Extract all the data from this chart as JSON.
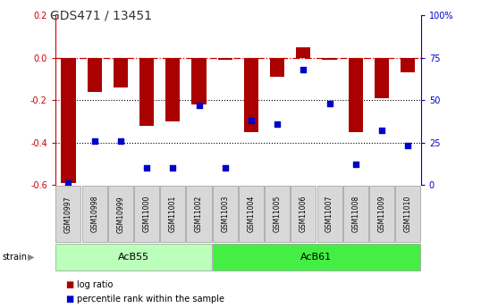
{
  "title": "GDS471 / 13451",
  "samples": [
    "GSM10997",
    "GSM10998",
    "GSM10999",
    "GSM11000",
    "GSM11001",
    "GSM11002",
    "GSM11003",
    "GSM11004",
    "GSM11005",
    "GSM11006",
    "GSM11007",
    "GSM11008",
    "GSM11009",
    "GSM11010"
  ],
  "log_ratio": [
    -0.59,
    -0.16,
    -0.14,
    -0.32,
    -0.3,
    -0.22,
    -0.01,
    -0.35,
    -0.09,
    0.05,
    -0.01,
    -0.35,
    -0.19,
    -0.07
  ],
  "percentile_rank": [
    1,
    26,
    26,
    10,
    10,
    47,
    10,
    38,
    36,
    68,
    48,
    12,
    32,
    23
  ],
  "strain_groups": [
    {
      "label": "AcB55",
      "start": 0,
      "end": 5
    },
    {
      "label": "AcB61",
      "start": 6,
      "end": 13
    }
  ],
  "ylim": [
    -0.6,
    0.2
  ],
  "yticks_left": [
    -0.6,
    -0.4,
    -0.2,
    0.0,
    0.2
  ],
  "yticks_right": [
    0,
    25,
    50,
    75,
    100
  ],
  "bar_color": "#aa0000",
  "dot_color": "#0000cc",
  "hline_color": "#cc0000",
  "grid_color": "#000000",
  "bg_color": "#ffffff",
  "strain_bg1": "#bbffbb",
  "strain_bg2": "#44ee44",
  "legend_items": [
    "log ratio",
    "percentile rank within the sample"
  ],
  "title_fontsize": 10,
  "tick_fontsize": 7,
  "sample_fontsize": 5.5
}
